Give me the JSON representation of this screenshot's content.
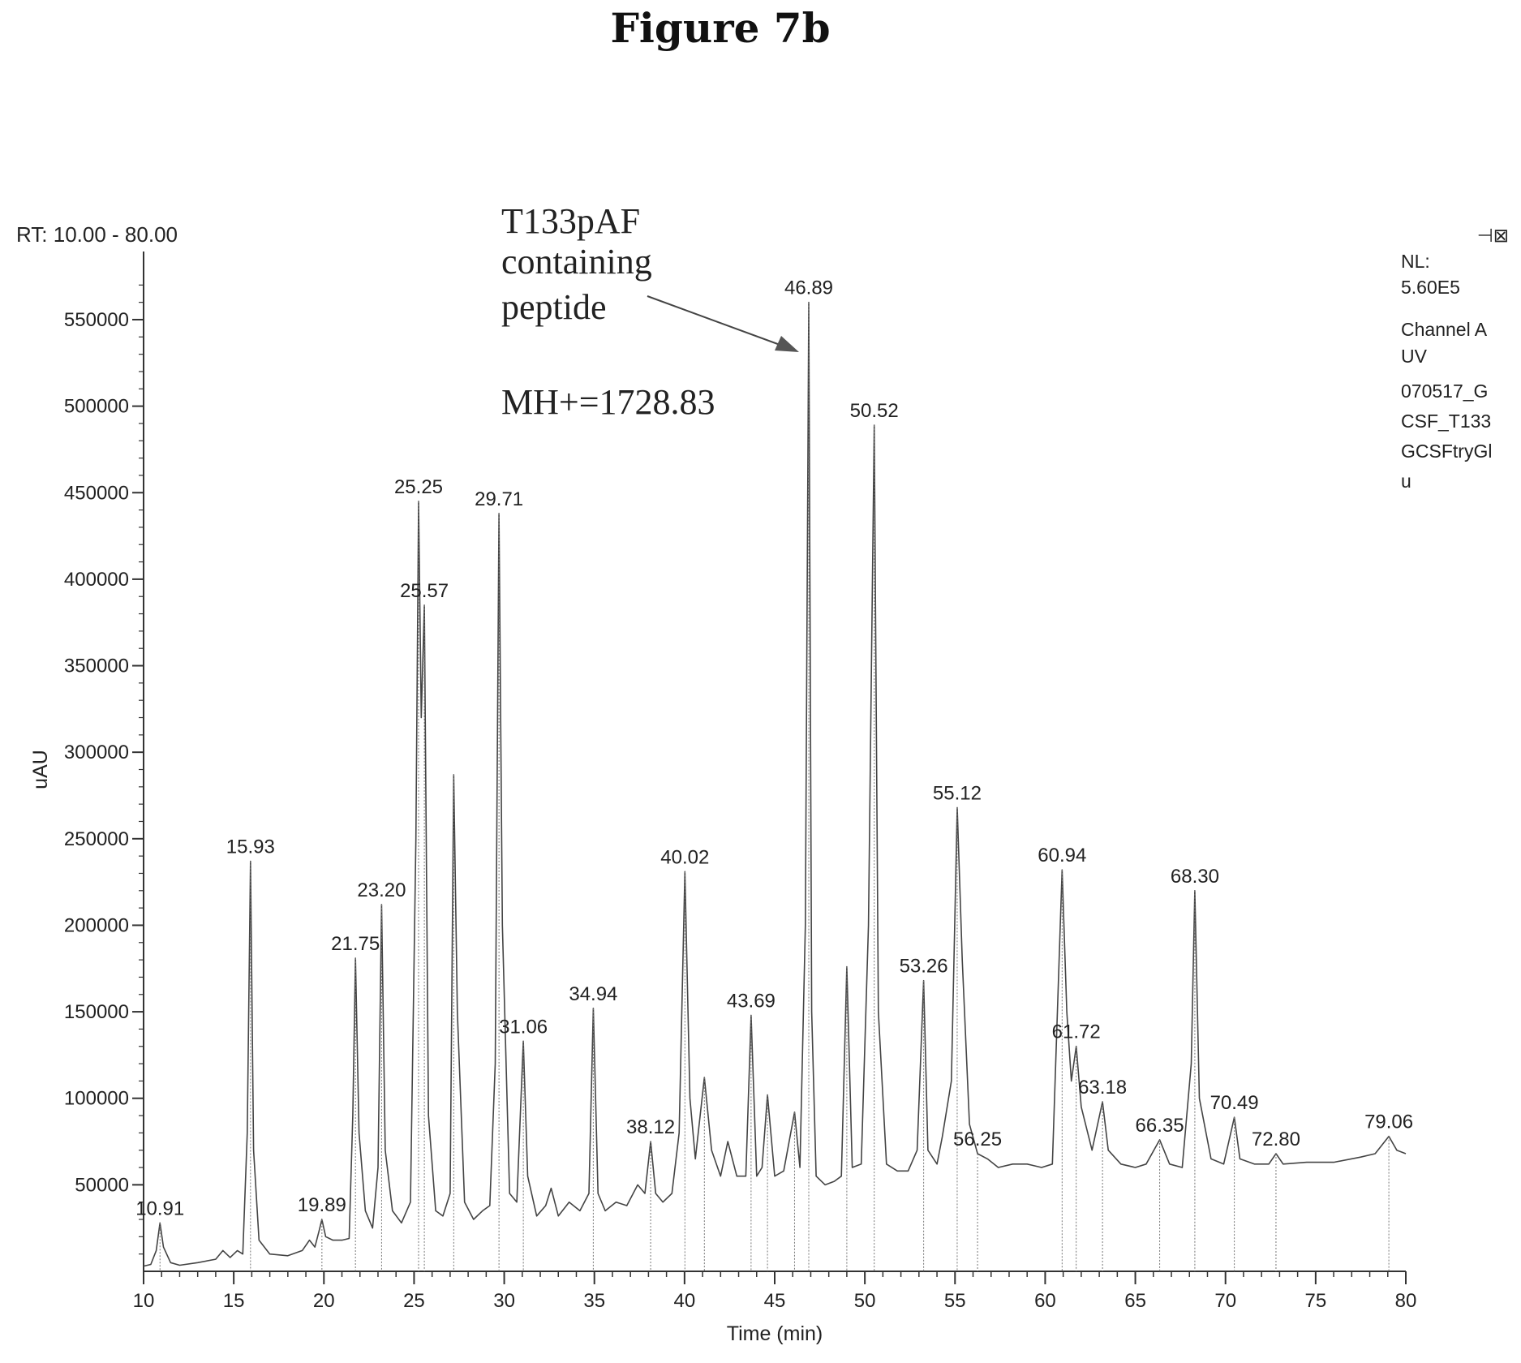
{
  "figure": {
    "title": "Figure 7b"
  },
  "header": {
    "rt_range": "RT: 10.00 - 80.00",
    "corner_mark": "⊣⊠"
  },
  "info_box": {
    "lines": [
      "NL:",
      "5.60E5",
      "Channel A",
      "UV",
      "070517_G",
      "CSF_T133",
      "GCSFtryGl",
      "u"
    ]
  },
  "annotation": {
    "lines": [
      "T133pAF",
      "containing",
      "peptide"
    ],
    "mh": "MH+=1728.83"
  },
  "chart_data": {
    "type": "line",
    "xlabel": "Time (min)",
    "ylabel": "uAU",
    "xlim": [
      10,
      80
    ],
    "ylim": [
      0,
      580000
    ],
    "xticks": [
      10,
      15,
      20,
      25,
      30,
      35,
      40,
      45,
      50,
      55,
      60,
      65,
      70,
      75,
      80
    ],
    "yticks": [
      50000,
      100000,
      150000,
      200000,
      250000,
      300000,
      350000,
      400000,
      450000,
      500000,
      550000
    ],
    "ytick_labels": [
      "50000",
      "100000",
      "150000",
      "200000",
      "250000",
      "300000",
      "350000",
      "400000",
      "450000",
      "500000",
      "550000"
    ],
    "peaks": [
      {
        "label": "10.91",
        "x": 10.91,
        "y": 28000
      },
      {
        "label": "15.93",
        "x": 15.93,
        "y": 237000
      },
      {
        "label": "19.89",
        "x": 19.89,
        "y": 30000
      },
      {
        "label": "21.75",
        "x": 21.75,
        "y": 181000
      },
      {
        "label": "23.20",
        "x": 23.2,
        "y": 212000
      },
      {
        "label": "25.25",
        "x": 25.25,
        "y": 445000
      },
      {
        "label": "25.57",
        "x": 25.57,
        "y": 385000
      },
      {
        "label": "29.71",
        "x": 29.71,
        "y": 438000
      },
      {
        "label": "31.06",
        "x": 31.06,
        "y": 133000
      },
      {
        "label": "34.94",
        "x": 34.94,
        "y": 152000
      },
      {
        "label": "38.12",
        "x": 38.12,
        "y": 75000
      },
      {
        "label": "40.02",
        "x": 40.02,
        "y": 231000
      },
      {
        "label": "43.69",
        "x": 43.69,
        "y": 148000
      },
      {
        "label": "46.89",
        "x": 46.89,
        "y": 560000
      },
      {
        "label": "50.52",
        "x": 50.52,
        "y": 489000
      },
      {
        "label": "53.26",
        "x": 53.26,
        "y": 168000
      },
      {
        "label": "55.12",
        "x": 55.12,
        "y": 268000
      },
      {
        "label": "56.25",
        "x": 56.25,
        "y": 68000
      },
      {
        "label": "60.94",
        "x": 60.94,
        "y": 232000
      },
      {
        "label": "61.72",
        "x": 61.72,
        "y": 130000
      },
      {
        "label": "63.18",
        "x": 63.18,
        "y": 98000
      },
      {
        "label": "66.35",
        "x": 66.35,
        "y": 76000
      },
      {
        "label": "68.30",
        "x": 68.3,
        "y": 220000
      },
      {
        "label": "70.49",
        "x": 70.49,
        "y": 89000
      },
      {
        "label": "72.80",
        "x": 72.8,
        "y": 68000
      },
      {
        "label": "79.06",
        "x": 79.06,
        "y": 78000
      }
    ],
    "unlabeled_peaks": [
      {
        "x": 27.2,
        "y": 287000
      },
      {
        "x": 49.0,
        "y": 176000
      },
      {
        "x": 41.1,
        "y": 112000
      },
      {
        "x": 44.6,
        "y": 102000
      },
      {
        "x": 46.1,
        "y": 92000
      }
    ],
    "trace": [
      [
        10.0,
        3000
      ],
      [
        10.4,
        4000
      ],
      [
        10.7,
        12000
      ],
      [
        10.91,
        28000
      ],
      [
        11.1,
        14000
      ],
      [
        11.5,
        5000
      ],
      [
        12.0,
        3500
      ],
      [
        13.0,
        5000
      ],
      [
        14.0,
        7000
      ],
      [
        14.4,
        12000
      ],
      [
        14.8,
        8000
      ],
      [
        15.2,
        12000
      ],
      [
        15.5,
        10000
      ],
      [
        15.75,
        80000
      ],
      [
        15.93,
        237000
      ],
      [
        16.1,
        70000
      ],
      [
        16.4,
        18000
      ],
      [
        17.0,
        10000
      ],
      [
        18.0,
        9000
      ],
      [
        18.8,
        12000
      ],
      [
        19.2,
        18000
      ],
      [
        19.5,
        14000
      ],
      [
        19.75,
        24000
      ],
      [
        19.89,
        30000
      ],
      [
        20.1,
        20000
      ],
      [
        20.5,
        18000
      ],
      [
        21.0,
        18000
      ],
      [
        21.4,
        19000
      ],
      [
        21.6,
        90000
      ],
      [
        21.75,
        181000
      ],
      [
        21.95,
        80000
      ],
      [
        22.3,
        35000
      ],
      [
        22.7,
        25000
      ],
      [
        23.0,
        60000
      ],
      [
        23.2,
        212000
      ],
      [
        23.4,
        70000
      ],
      [
        23.8,
        35000
      ],
      [
        24.3,
        28000
      ],
      [
        24.8,
        40000
      ],
      [
        25.1,
        250000
      ],
      [
        25.25,
        445000
      ],
      [
        25.4,
        320000
      ],
      [
        25.57,
        385000
      ],
      [
        25.8,
        90000
      ],
      [
        26.2,
        35000
      ],
      [
        26.6,
        32000
      ],
      [
        27.0,
        45000
      ],
      [
        27.2,
        287000
      ],
      [
        27.4,
        150000
      ],
      [
        27.8,
        40000
      ],
      [
        28.3,
        30000
      ],
      [
        28.8,
        35000
      ],
      [
        29.2,
        38000
      ],
      [
        29.5,
        120000
      ],
      [
        29.71,
        438000
      ],
      [
        29.9,
        200000
      ],
      [
        30.3,
        45000
      ],
      [
        30.7,
        40000
      ],
      [
        31.06,
        133000
      ],
      [
        31.3,
        55000
      ],
      [
        31.8,
        32000
      ],
      [
        32.3,
        38000
      ],
      [
        32.6,
        48000
      ],
      [
        33.0,
        32000
      ],
      [
        33.6,
        40000
      ],
      [
        34.2,
        35000
      ],
      [
        34.7,
        45000
      ],
      [
        34.94,
        152000
      ],
      [
        35.2,
        45000
      ],
      [
        35.6,
        35000
      ],
      [
        36.2,
        40000
      ],
      [
        36.8,
        38000
      ],
      [
        37.4,
        50000
      ],
      [
        37.8,
        45000
      ],
      [
        38.12,
        75000
      ],
      [
        38.4,
        45000
      ],
      [
        38.8,
        40000
      ],
      [
        39.3,
        45000
      ],
      [
        39.7,
        80000
      ],
      [
        40.02,
        231000
      ],
      [
        40.3,
        100000
      ],
      [
        40.6,
        65000
      ],
      [
        41.1,
        112000
      ],
      [
        41.5,
        70000
      ],
      [
        42.0,
        55000
      ],
      [
        42.4,
        75000
      ],
      [
        42.9,
        55000
      ],
      [
        43.4,
        55000
      ],
      [
        43.69,
        148000
      ],
      [
        44.0,
        55000
      ],
      [
        44.3,
        60000
      ],
      [
        44.6,
        102000
      ],
      [
        45.0,
        55000
      ],
      [
        45.5,
        58000
      ],
      [
        46.1,
        92000
      ],
      [
        46.4,
        60000
      ],
      [
        46.7,
        200000
      ],
      [
        46.89,
        560000
      ],
      [
        47.05,
        150000
      ],
      [
        47.3,
        55000
      ],
      [
        47.8,
        50000
      ],
      [
        48.3,
        52000
      ],
      [
        48.7,
        55000
      ],
      [
        49.0,
        176000
      ],
      [
        49.3,
        60000
      ],
      [
        49.8,
        62000
      ],
      [
        50.2,
        200000
      ],
      [
        50.52,
        489000
      ],
      [
        50.75,
        150000
      ],
      [
        51.2,
        62000
      ],
      [
        51.8,
        58000
      ],
      [
        52.4,
        58000
      ],
      [
        52.9,
        70000
      ],
      [
        53.26,
        168000
      ],
      [
        53.5,
        70000
      ],
      [
        54.0,
        62000
      ],
      [
        54.3,
        78000
      ],
      [
        54.8,
        110000
      ],
      [
        55.12,
        268000
      ],
      [
        55.4,
        180000
      ],
      [
        55.8,
        85000
      ],
      [
        56.25,
        68000
      ],
      [
        56.8,
        65000
      ],
      [
        57.4,
        60000
      ],
      [
        58.2,
        62000
      ],
      [
        59.0,
        62000
      ],
      [
        59.8,
        60000
      ],
      [
        60.4,
        62000
      ],
      [
        60.94,
        232000
      ],
      [
        61.2,
        150000
      ],
      [
        61.45,
        110000
      ],
      [
        61.72,
        130000
      ],
      [
        62.0,
        95000
      ],
      [
        62.6,
        70000
      ],
      [
        63.18,
        98000
      ],
      [
        63.5,
        70000
      ],
      [
        64.2,
        62000
      ],
      [
        65.0,
        60000
      ],
      [
        65.6,
        62000
      ],
      [
        66.35,
        76000
      ],
      [
        66.9,
        62000
      ],
      [
        67.6,
        60000
      ],
      [
        68.1,
        120000
      ],
      [
        68.3,
        220000
      ],
      [
        68.55,
        100000
      ],
      [
        69.2,
        65000
      ],
      [
        69.9,
        62000
      ],
      [
        70.49,
        89000
      ],
      [
        70.8,
        65000
      ],
      [
        71.6,
        62000
      ],
      [
        72.4,
        62000
      ],
      [
        72.8,
        68000
      ],
      [
        73.2,
        62000
      ],
      [
        74.5,
        63000
      ],
      [
        76.0,
        63000
      ],
      [
        77.5,
        66000
      ],
      [
        78.3,
        68000
      ],
      [
        79.06,
        78000
      ],
      [
        79.5,
        70000
      ],
      [
        80.0,
        68000
      ]
    ]
  }
}
